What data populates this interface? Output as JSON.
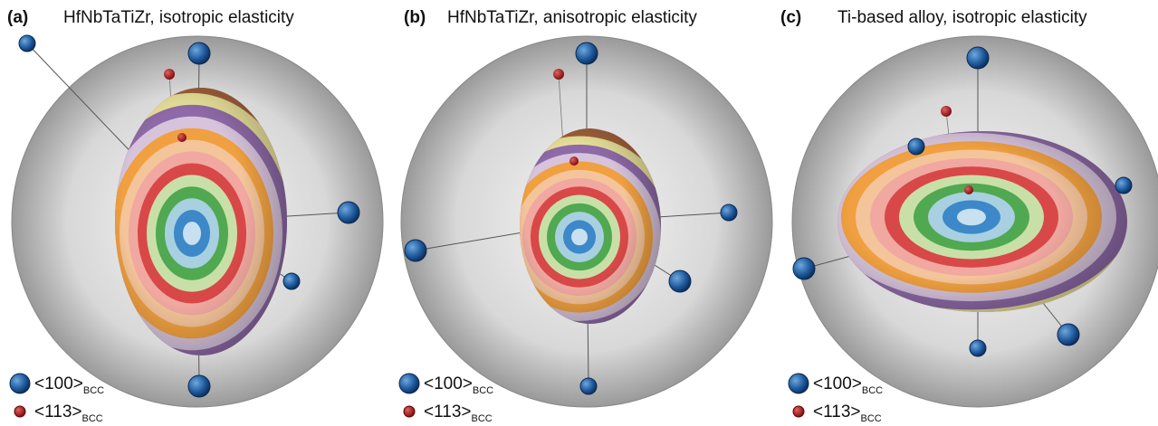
{
  "panels": [
    {
      "label": "(a)",
      "title": "HfNbTaTiZr, isotropic elasticity",
      "legend": [
        {
          "text": "<100>",
          "sub": "BCC"
        },
        {
          "text": "<113>",
          "sub": "BCC"
        }
      ]
    },
    {
      "label": "(b)",
      "title": "HfNbTaTiZr, anisotropic elasticity",
      "legend": [
        {
          "text": "<100>",
          "sub": "BCC"
        },
        {
          "text": "<113>",
          "sub": "BCC"
        }
      ]
    },
    {
      "label": "(c)",
      "title": "Ti-based alloy, isotropic elasticity",
      "legend": [
        {
          "text": "<100>",
          "sub": "BCC"
        },
        {
          "text": "<113>",
          "sub": "BCC"
        }
      ]
    }
  ]
}
